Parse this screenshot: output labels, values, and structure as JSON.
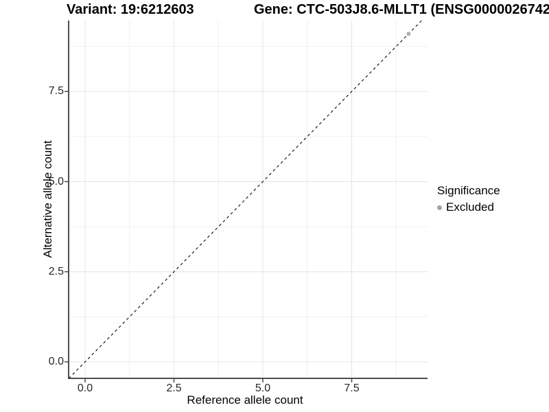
{
  "titles": {
    "variant": "Variant: 19:6212603",
    "gene": "Gene: CTC-503J8.6-MLLT1 (ENSG0000026742"
  },
  "chart_data": {
    "type": "scatter",
    "xlabel": "Reference allele count",
    "ylabel": "Alternative allele count",
    "xlim": [
      -0.46,
      9.63
    ],
    "ylim": [
      -0.46,
      9.47
    ],
    "x_ticks": {
      "values": [
        0,
        2.5,
        5,
        7.5
      ],
      "labels": [
        "0.0",
        "2.5",
        "5.0",
        "7.5"
      ]
    },
    "y_ticks": {
      "values": [
        0,
        2.5,
        5,
        7.5
      ],
      "labels": [
        "0.0",
        "2.5",
        "5.0",
        "7.5"
      ]
    },
    "minor_tick_values": [
      1.25,
      3.75,
      6.25,
      8.75
    ],
    "grid": true,
    "identity_line": {
      "style": "dashed",
      "color": "#1a1a1a",
      "from": [
        -0.46,
        -0.46
      ],
      "to": [
        9.47,
        9.47
      ]
    },
    "series": [
      {
        "name": "Excluded",
        "color": "#b0b0b0",
        "points": [
          {
            "x": 9.1,
            "y": 9.1
          }
        ]
      }
    ],
    "legend": {
      "title": "Significance",
      "position": "right",
      "items": [
        {
          "label": "Excluded",
          "color": "#a3a3a3"
        }
      ]
    },
    "colors": {
      "axis": "#4d4d4d",
      "tick": "#4a4a4a",
      "grid_major": "#e4e4e4",
      "grid_minor": "#f0f0f0"
    }
  }
}
